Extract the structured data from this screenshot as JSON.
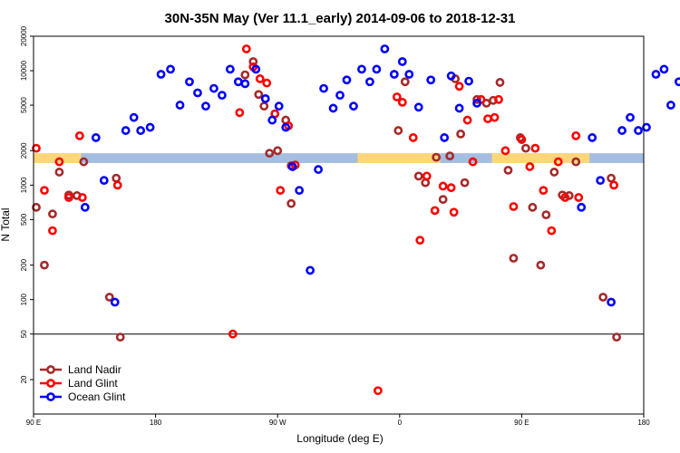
{
  "chart_data": {
    "type": "scatter",
    "title": "30N-35N May (Ver 11.1_early)   2014-09-06 to 2018-12-31",
    "xlabel": "Longitude (deg E)",
    "ylabel": "N Total",
    "y_scale": "log",
    "ylim": [
      10,
      20000
    ],
    "x_ticks": [
      "90 E",
      "180",
      "90 W",
      "0",
      "90 E",
      "180"
    ],
    "y_ticks": [
      20,
      50,
      100,
      200,
      500,
      1000,
      2000,
      5000,
      10000,
      20000
    ],
    "reference_line": 50,
    "legend_position": "bottom-left",
    "band_colors": {
      "blue": "#a4bde0",
      "yellow": "#ffd77a"
    },
    "series": [
      {
        "name": "Land Nadir",
        "color": "#a52a2a",
        "points": [
          [
            92,
            640
          ],
          [
            98,
            200
          ],
          [
            104,
            560
          ],
          [
            109,
            1300
          ],
          [
            116,
            820
          ],
          [
            122,
            810
          ],
          [
            127,
            1600
          ],
          [
            146,
            105
          ],
          [
            151,
            1150
          ],
          [
            154,
            47
          ],
          [
            246,
            9200
          ],
          [
            252,
            12000
          ],
          [
            256,
            6200
          ],
          [
            260,
            4900
          ],
          [
            264,
            1900
          ],
          [
            270,
            2000
          ],
          [
            276,
            3700
          ],
          [
            280,
            690
          ],
          [
            280,
            1480
          ],
          [
            359,
            3000
          ],
          [
            364,
            8000
          ],
          [
            374,
            1200
          ],
          [
            379,
            1050
          ],
          [
            387,
            1750
          ],
          [
            392,
            750
          ],
          [
            397,
            1800
          ],
          [
            401,
            8500
          ],
          [
            405,
            2800
          ],
          [
            408,
            1050
          ],
          [
            417,
            5600
          ],
          [
            424,
            5200
          ],
          [
            429,
            5500
          ],
          [
            434,
            7900
          ],
          [
            440,
            1350
          ],
          [
            444,
            230
          ],
          [
            449,
            2600
          ],
          [
            453,
            2100
          ],
          [
            458,
            640
          ],
          [
            464,
            200
          ],
          [
            468,
            550
          ],
          [
            474,
            1300
          ],
          [
            480,
            820
          ],
          [
            485,
            810
          ],
          [
            490,
            1600
          ],
          [
            510,
            105
          ],
          [
            516,
            1150
          ],
          [
            520,
            47
          ]
        ]
      },
      {
        "name": "Land Glint",
        "color": "#ff0000",
        "points": [
          [
            92,
            2100
          ],
          [
            98,
            900
          ],
          [
            104,
            400
          ],
          [
            109,
            1600
          ],
          [
            116,
            780
          ],
          [
            124,
            2700
          ],
          [
            126,
            780
          ],
          [
            152,
            1000
          ],
          [
            237,
            50
          ],
          [
            242,
            4300
          ],
          [
            247,
            15500
          ],
          [
            252,
            10800
          ],
          [
            257,
            8500
          ],
          [
            262,
            7800
          ],
          [
            268,
            4200
          ],
          [
            272,
            900
          ],
          [
            278,
            3300
          ],
          [
            283,
            1500
          ],
          [
            344,
            16
          ],
          [
            358,
            5900
          ],
          [
            362,
            5300
          ],
          [
            370,
            2600
          ],
          [
            375,
            330
          ],
          [
            380,
            1200
          ],
          [
            386,
            600
          ],
          [
            392,
            980
          ],
          [
            398,
            950
          ],
          [
            400,
            580
          ],
          [
            404,
            7300
          ],
          [
            410,
            3700
          ],
          [
            414,
            1600
          ],
          [
            420,
            5600
          ],
          [
            425,
            3800
          ],
          [
            430,
            3900
          ],
          [
            433,
            5600
          ],
          [
            438,
            2000
          ],
          [
            444,
            650
          ],
          [
            450,
            2500
          ],
          [
            456,
            1450
          ],
          [
            460,
            2100
          ],
          [
            466,
            900
          ],
          [
            472,
            400
          ],
          [
            477,
            1600
          ],
          [
            482,
            780
          ],
          [
            490,
            2700
          ],
          [
            492,
            780
          ],
          [
            518,
            1000
          ]
        ]
      },
      {
        "name": "Ocean Glint",
        "color": "#0000ff",
        "points": [
          [
            128,
            640
          ],
          [
            136,
            2600
          ],
          [
            142,
            1100
          ],
          [
            150,
            95
          ],
          [
            158,
            3000
          ],
          [
            164,
            3900
          ],
          [
            169,
            3000
          ],
          [
            176,
            3200
          ],
          [
            184,
            9300
          ],
          [
            191,
            10300
          ],
          [
            198,
            5000
          ],
          [
            205,
            8000
          ],
          [
            211,
            6400
          ],
          [
            217,
            4900
          ],
          [
            223,
            7000
          ],
          [
            229,
            6100
          ],
          [
            235,
            10300
          ],
          [
            241,
            8000
          ],
          [
            246,
            7700
          ],
          [
            254,
            10300
          ],
          [
            261,
            5700
          ],
          [
            266,
            3700
          ],
          [
            271,
            4900
          ],
          [
            276,
            3200
          ],
          [
            281,
            1450
          ],
          [
            286,
            900
          ],
          [
            294,
            180
          ],
          [
            300,
            1370
          ],
          [
            304,
            7000
          ],
          [
            311,
            4700
          ],
          [
            316,
            6100
          ],
          [
            321,
            8300
          ],
          [
            326,
            4900
          ],
          [
            332,
            10300
          ],
          [
            338,
            8000
          ],
          [
            343,
            10300
          ],
          [
            349,
            15500
          ],
          [
            356,
            9300
          ],
          [
            362,
            12000
          ],
          [
            367,
            9300
          ],
          [
            374,
            4800
          ],
          [
            383,
            8300
          ],
          [
            393,
            2600
          ],
          [
            398,
            9000
          ],
          [
            404,
            4700
          ],
          [
            411,
            8100
          ],
          [
            417,
            5200
          ],
          [
            494,
            640
          ],
          [
            502,
            2600
          ],
          [
            508,
            1100
          ],
          [
            516,
            95
          ],
          [
            524,
            3000
          ],
          [
            530,
            3900
          ],
          [
            536,
            3000
          ],
          [
            542,
            3200
          ],
          [
            549,
            9300
          ],
          [
            555,
            10300
          ],
          [
            560,
            5000
          ],
          [
            566,
            8000
          ]
        ]
      }
    ]
  }
}
